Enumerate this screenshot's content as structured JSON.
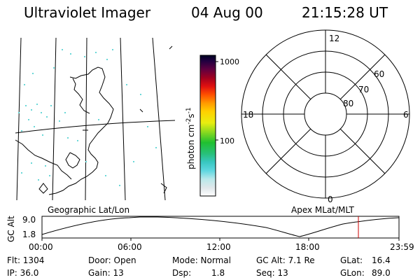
{
  "header": {
    "instrument": "Ultraviolet Imager",
    "date": "04 Aug 00",
    "time": "21:15:28 UT"
  },
  "colorbar": {
    "label": "photon cm",
    "label_exp1": "-2",
    "label_mid": "s",
    "label_exp2": "-1",
    "ticks": [
      {
        "label": "1000",
        "value": 1000
      },
      {
        "label": "100",
        "value": 100
      }
    ]
  },
  "polar_plot": {
    "lat_labels": [
      "60",
      "70",
      "80"
    ],
    "mlt_labels": {
      "top": "12",
      "left": "18",
      "right": "6",
      "bottom": "0"
    }
  },
  "map_labels": {
    "left": "Geographic Lat/Lon",
    "right": "Apex MLat/MLT"
  },
  "altitude_plot": {
    "ylabel": "GC Alt",
    "yticks": [
      "9.0",
      "1.8"
    ],
    "xticks": [
      "00:00",
      "06:00",
      "12:00",
      "18:00",
      "23:59"
    ],
    "marker_color": "#cc0000"
  },
  "info": {
    "flt": "Flt: 1304",
    "ip": "IP: 36.0",
    "door": "Door: Open",
    "gain": "Gain: 13",
    "mode": "Mode: Normal",
    "dsp_label": "Dsp:",
    "dsp_value": "1.8",
    "gcalt": "GC Alt: 7.1 Re",
    "seq": "Seq: 13",
    "glat_label": "GLat:",
    "glat_value": "16.4",
    "glon_label": "GLon:",
    "glon_value": "89.0"
  }
}
